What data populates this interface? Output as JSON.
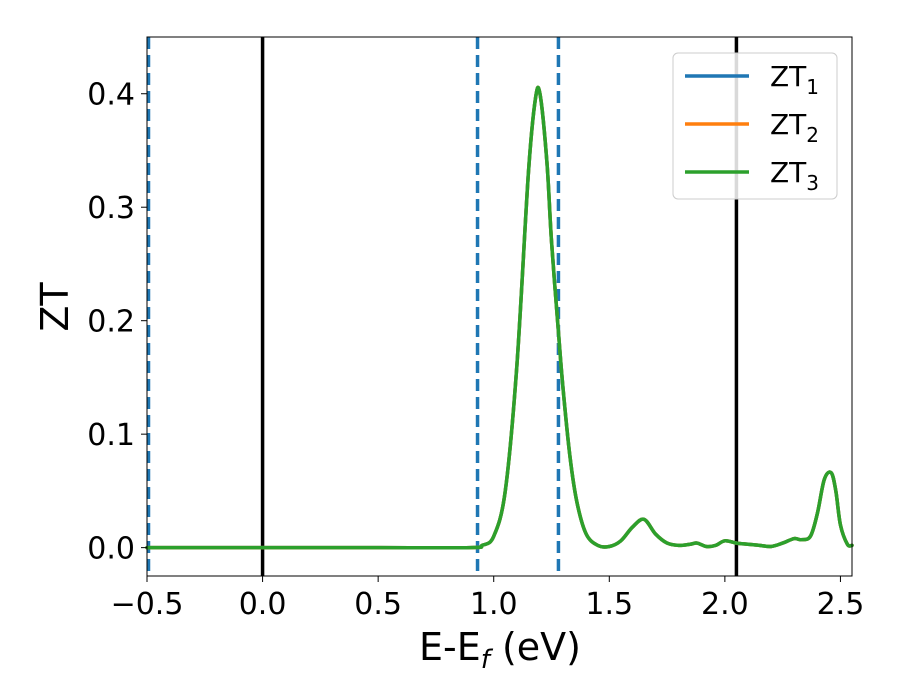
{
  "chart_data": {
    "type": "line",
    "xlabel": "E-E",
    "xlabel_sub": "f",
    "xlabel_unit": " (eV)",
    "ylabel": "ZT",
    "xlim": [
      -0.5,
      2.55
    ],
    "ylim": [
      -0.025,
      0.45
    ],
    "x_ticks": [
      -0.5,
      0.0,
      0.5,
      1.0,
      1.5,
      2.0,
      2.5
    ],
    "x_tick_labels": [
      "−0.5",
      "0.0",
      "0.5",
      "1.0",
      "1.5",
      "2.0",
      "2.5"
    ],
    "y_ticks": [
      0.0,
      0.1,
      0.2,
      0.3,
      0.4
    ],
    "y_tick_labels": [
      "0.0",
      "0.1",
      "0.2",
      "0.3",
      "0.4"
    ],
    "grid": false,
    "legend": {
      "placement": "top-right"
    },
    "vlines_solid": [
      0.0,
      2.05
    ],
    "vlines_solid_color": "#000000",
    "vlines_dashed": [
      -0.5,
      0.93,
      1.28
    ],
    "vlines_dashed_color": "#1f77b4",
    "series": [
      {
        "name": "ZT",
        "name_sub": "1",
        "color": "#1f77b4",
        "x": [
          -0.5,
          0.0,
          0.5,
          0.9,
          0.95,
          1.0,
          1.05,
          1.1,
          1.15,
          1.18,
          1.2,
          1.23,
          1.25,
          1.28,
          1.3,
          1.33,
          1.36,
          1.4,
          1.45,
          1.5,
          1.55,
          1.6,
          1.65,
          1.7,
          1.75,
          1.8,
          1.85,
          1.88,
          1.92,
          1.96,
          2.0,
          2.05,
          2.1,
          2.15,
          2.2,
          2.25,
          2.3,
          2.33,
          2.37,
          2.4,
          2.43,
          2.46,
          2.48,
          2.5,
          2.53,
          2.55
        ],
        "y": [
          0.0,
          0.0,
          0.0,
          0.0,
          0.002,
          0.01,
          0.05,
          0.16,
          0.33,
          0.395,
          0.4,
          0.34,
          0.27,
          0.19,
          0.14,
          0.08,
          0.04,
          0.012,
          0.002,
          0.001,
          0.006,
          0.018,
          0.025,
          0.012,
          0.004,
          0.002,
          0.003,
          0.004,
          0.001,
          0.002,
          0.006,
          0.004,
          0.003,
          0.002,
          0.001,
          0.004,
          0.008,
          0.007,
          0.01,
          0.03,
          0.06,
          0.066,
          0.05,
          0.02,
          0.003,
          0.002
        ]
      },
      {
        "name": "ZT",
        "name_sub": "2",
        "color": "#ff7f0e",
        "x": [
          -0.5,
          0.0,
          0.5,
          0.9,
          0.95,
          1.0,
          1.05,
          1.1,
          1.15,
          1.18,
          1.2,
          1.23,
          1.25,
          1.28,
          1.3,
          1.33,
          1.36,
          1.4,
          1.45,
          1.5,
          1.55,
          1.6,
          1.65,
          1.7,
          1.75,
          1.8,
          1.85,
          1.88,
          1.92,
          1.96,
          2.0,
          2.05,
          2.1,
          2.15,
          2.2,
          2.25,
          2.3,
          2.33,
          2.37,
          2.4,
          2.43,
          2.46,
          2.48,
          2.5,
          2.53,
          2.55
        ],
        "y": [
          0.0,
          0.0,
          0.0,
          0.0,
          0.002,
          0.01,
          0.05,
          0.16,
          0.33,
          0.395,
          0.4,
          0.34,
          0.27,
          0.19,
          0.14,
          0.08,
          0.04,
          0.012,
          0.002,
          0.001,
          0.006,
          0.018,
          0.025,
          0.012,
          0.004,
          0.002,
          0.003,
          0.004,
          0.001,
          0.002,
          0.006,
          0.004,
          0.003,
          0.002,
          0.001,
          0.004,
          0.008,
          0.007,
          0.01,
          0.03,
          0.06,
          0.066,
          0.05,
          0.02,
          0.003,
          0.002
        ]
      },
      {
        "name": "ZT",
        "name_sub": "3",
        "color": "#2ca02c",
        "x": [
          -0.5,
          0.0,
          0.5,
          0.9,
          0.95,
          1.0,
          1.05,
          1.1,
          1.15,
          1.18,
          1.2,
          1.23,
          1.25,
          1.28,
          1.3,
          1.33,
          1.36,
          1.4,
          1.45,
          1.5,
          1.55,
          1.6,
          1.65,
          1.7,
          1.75,
          1.8,
          1.85,
          1.88,
          1.92,
          1.96,
          2.0,
          2.05,
          2.1,
          2.15,
          2.2,
          2.25,
          2.3,
          2.33,
          2.37,
          2.4,
          2.43,
          2.46,
          2.48,
          2.5,
          2.53,
          2.55
        ],
        "y": [
          0.0,
          0.0,
          0.0,
          0.0,
          0.002,
          0.01,
          0.05,
          0.16,
          0.33,
          0.395,
          0.4,
          0.34,
          0.27,
          0.19,
          0.14,
          0.08,
          0.04,
          0.012,
          0.002,
          0.001,
          0.006,
          0.018,
          0.025,
          0.012,
          0.004,
          0.002,
          0.003,
          0.004,
          0.001,
          0.002,
          0.006,
          0.004,
          0.003,
          0.002,
          0.001,
          0.004,
          0.008,
          0.007,
          0.01,
          0.03,
          0.06,
          0.066,
          0.05,
          0.02,
          0.003,
          0.002
        ]
      }
    ]
  }
}
